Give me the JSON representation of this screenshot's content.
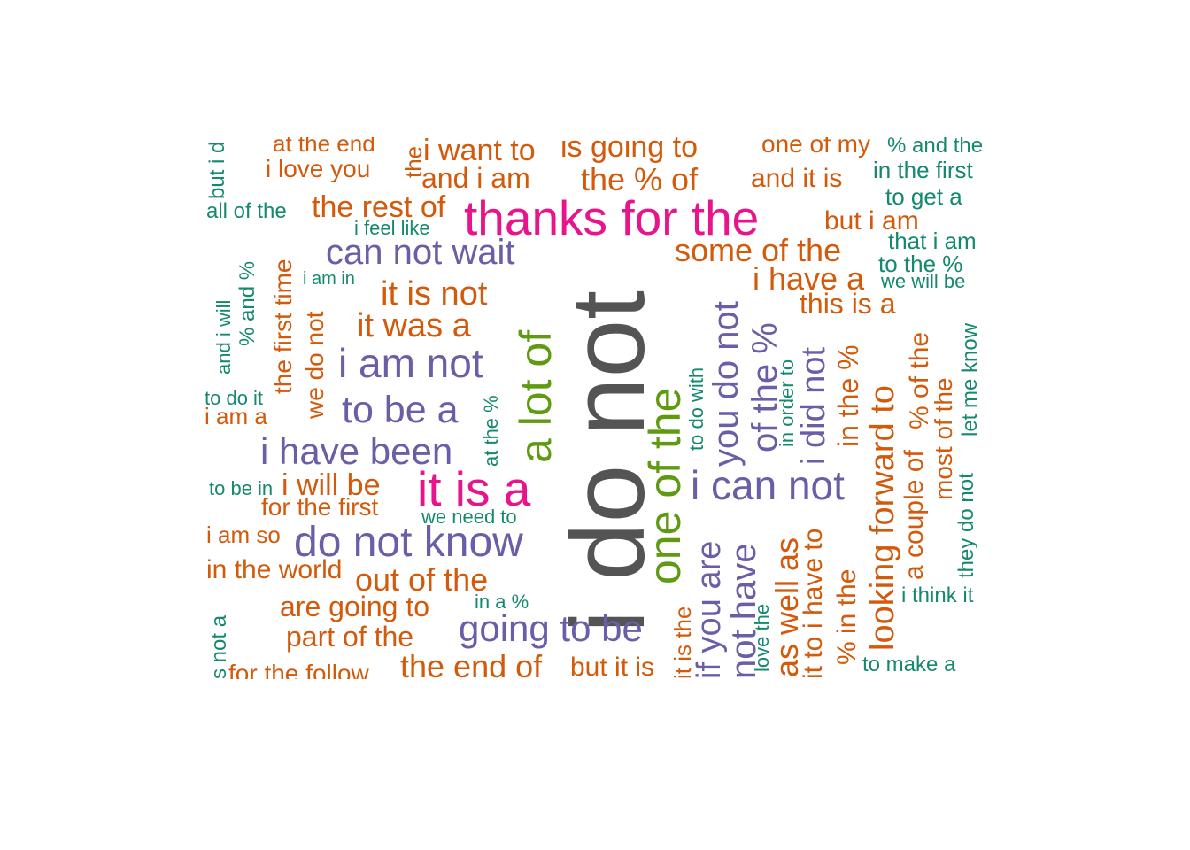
{
  "palette": {
    "gray": "#545454",
    "pink": "#e7158c",
    "green": "#5f9a12",
    "purple": "#6a5fa6",
    "orange": "#d35a0b",
    "teal": "#15896f"
  },
  "words": [
    "i do not",
    "thanks for the",
    "it is a",
    "a lot of",
    "one of the",
    "can not wait",
    "i am not",
    "to be a",
    "i have been",
    "do not know",
    "going to be",
    "i can not",
    "you do not",
    "if you are",
    "not have",
    "of the %",
    "i did not",
    "i want to",
    "and i am",
    "is going to",
    "the % of",
    "one of my",
    "and it is",
    "at the end",
    "i love you",
    "the rest of",
    "some of the",
    "but i am",
    "i have a",
    "this is a",
    "it is not",
    "it was a",
    "i will be",
    "for the first",
    "out of the",
    "are going to",
    "part of the",
    "the end of",
    "but it is",
    "as well as",
    "looking forward to",
    "in the %",
    "the first time",
    "we do not",
    "i am a",
    "i am so",
    "in the world",
    "for the follow",
    "it to",
    "i have to",
    "% in the",
    "a couple of",
    "% of the",
    "most of the",
    "it is the",
    "% and the",
    "in the first",
    "to get a",
    "that i am",
    "to the %",
    "we will be",
    "let me know",
    "they do not",
    "i think it",
    "to make a",
    "but i d",
    "all of the",
    "i feel like",
    "i am in",
    "and i will",
    "% and %",
    "to do it",
    "to be in",
    "at the %",
    "we need to",
    "in a %",
    "to do with",
    "in order to",
    "love the",
    "s not a",
    "the"
  ]
}
